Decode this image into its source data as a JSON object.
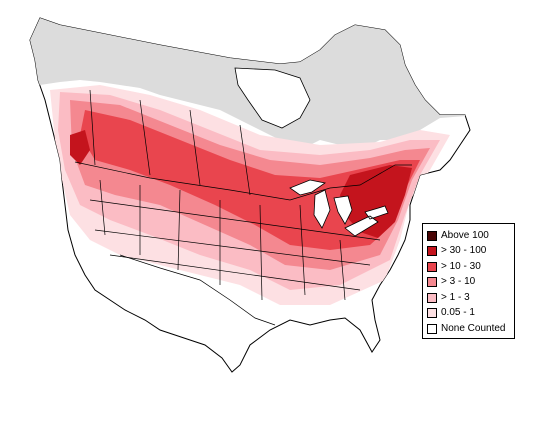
{
  "colors": {
    "land_none": "#ffffff",
    "not_surveyed": "#dcdcdc",
    "level_1": "#fde0e3",
    "level_2": "#fbbcc4",
    "level_3": "#f48890",
    "level_4": "#e9454e",
    "level_5": "#c4141d",
    "level_6": "#4a0606",
    "border": "#000000"
  },
  "legend": {
    "items": [
      {
        "label": "Above 100",
        "color": "#4a0606"
      },
      {
        "label": "> 30 - 100",
        "color": "#c4141d"
      },
      {
        "label": "> 10 - 30",
        "color": "#e9454e"
      },
      {
        "label": "> 3 - 10",
        "color": "#f48890"
      },
      {
        "label": "> 1 - 3",
        "color": "#fbbcc4"
      },
      {
        "label": "0.05 - 1",
        "color": "#fde0e3"
      },
      {
        "label": "None Counted",
        "color": "#ffffff"
      }
    ]
  }
}
